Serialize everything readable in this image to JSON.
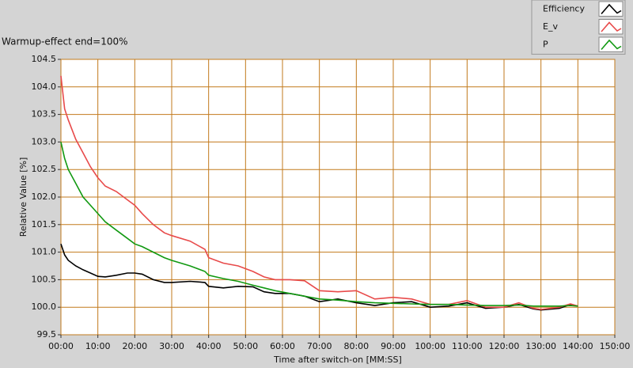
{
  "chart_data": {
    "type": "line",
    "title": "Warmup-effect end=100%",
    "x_label": "Time after switch-on [MM:SS]",
    "y_label": "Relative Value [%]",
    "x": [
      0,
      1,
      2,
      4,
      6,
      8,
      10,
      12,
      15,
      18,
      20,
      22,
      25,
      28,
      30,
      35,
      39,
      40,
      44,
      48,
      52,
      55,
      58,
      62,
      66,
      70,
      75,
      80,
      85,
      90,
      95,
      100,
      105,
      110,
      115,
      120,
      124,
      128,
      130,
      135,
      138,
      140
    ],
    "series": [
      {
        "name": "Efficiency",
        "color": "#000000",
        "values": [
          101.15,
          100.95,
          100.85,
          100.75,
          100.68,
          100.62,
          100.56,
          100.55,
          100.58,
          100.62,
          100.62,
          100.6,
          100.5,
          100.45,
          100.45,
          100.47,
          100.45,
          100.38,
          100.35,
          100.38,
          100.37,
          100.28,
          100.25,
          100.25,
          100.2,
          100.1,
          100.15,
          100.08,
          100.03,
          100.08,
          100.1,
          100.0,
          100.02,
          100.08,
          99.98,
          100.0,
          100.05,
          99.97,
          99.95,
          99.98,
          100.05,
          100.02
        ]
      },
      {
        "name": "E_v",
        "color": "#e84a4a",
        "values": [
          104.2,
          103.6,
          103.4,
          103.05,
          102.8,
          102.55,
          102.35,
          102.2,
          102.1,
          101.95,
          101.85,
          101.7,
          101.5,
          101.35,
          101.3,
          101.2,
          101.05,
          100.9,
          100.8,
          100.75,
          100.65,
          100.55,
          100.5,
          100.5,
          100.48,
          100.3,
          100.28,
          100.3,
          100.15,
          100.18,
          100.15,
          100.05,
          100.05,
          100.12,
          100.0,
          100.0,
          100.08,
          99.98,
          99.96,
          100.0,
          100.06,
          100.02
        ]
      },
      {
        "name": "P",
        "color": "#119911",
        "values": [
          103.0,
          102.7,
          102.5,
          102.25,
          102.0,
          101.85,
          101.7,
          101.55,
          101.4,
          101.25,
          101.15,
          101.1,
          101.0,
          100.9,
          100.85,
          100.75,
          100.65,
          100.58,
          100.52,
          100.47,
          100.4,
          100.35,
          100.3,
          100.25,
          100.2,
          100.15,
          100.13,
          100.1,
          100.08,
          100.07,
          100.06,
          100.05,
          100.05,
          100.04,
          100.03,
          100.03,
          100.04,
          100.02,
          100.02,
          100.02,
          100.03,
          100.02
        ]
      }
    ],
    "xlim": [
      0,
      150
    ],
    "xticks": [
      {
        "value": 0,
        "label": "00:00"
      },
      {
        "value": 10,
        "label": "10:00"
      },
      {
        "value": 20,
        "label": "20:00"
      },
      {
        "value": 30,
        "label": "30:00"
      },
      {
        "value": 40,
        "label": "40:00"
      },
      {
        "value": 50,
        "label": "50:00"
      },
      {
        "value": 60,
        "label": "60:00"
      },
      {
        "value": 70,
        "label": "70:00"
      },
      {
        "value": 80,
        "label": "80:00"
      },
      {
        "value": 90,
        "label": "90:00"
      },
      {
        "value": 100,
        "label": "100:00"
      },
      {
        "value": 110,
        "label": "110:00"
      },
      {
        "value": 120,
        "label": "120:00"
      },
      {
        "value": 130,
        "label": "130:00"
      },
      {
        "value": 140,
        "label": "140:00"
      },
      {
        "value": 150,
        "label": "150:00"
      }
    ],
    "ylim": [
      99.5,
      104.5
    ],
    "yticks": [
      99.5,
      {
        "value": 100,
        "label": "100.0"
      },
      100.5,
      {
        "value": 101,
        "label": "101.0"
      },
      101.5,
      {
        "value": 102,
        "label": "102.0"
      },
      102.5,
      {
        "value": 103,
        "label": "103.0"
      },
      103.5,
      {
        "value": 104,
        "label": "104.0"
      },
      104.5
    ],
    "grid": true,
    "legend": "top-right"
  }
}
